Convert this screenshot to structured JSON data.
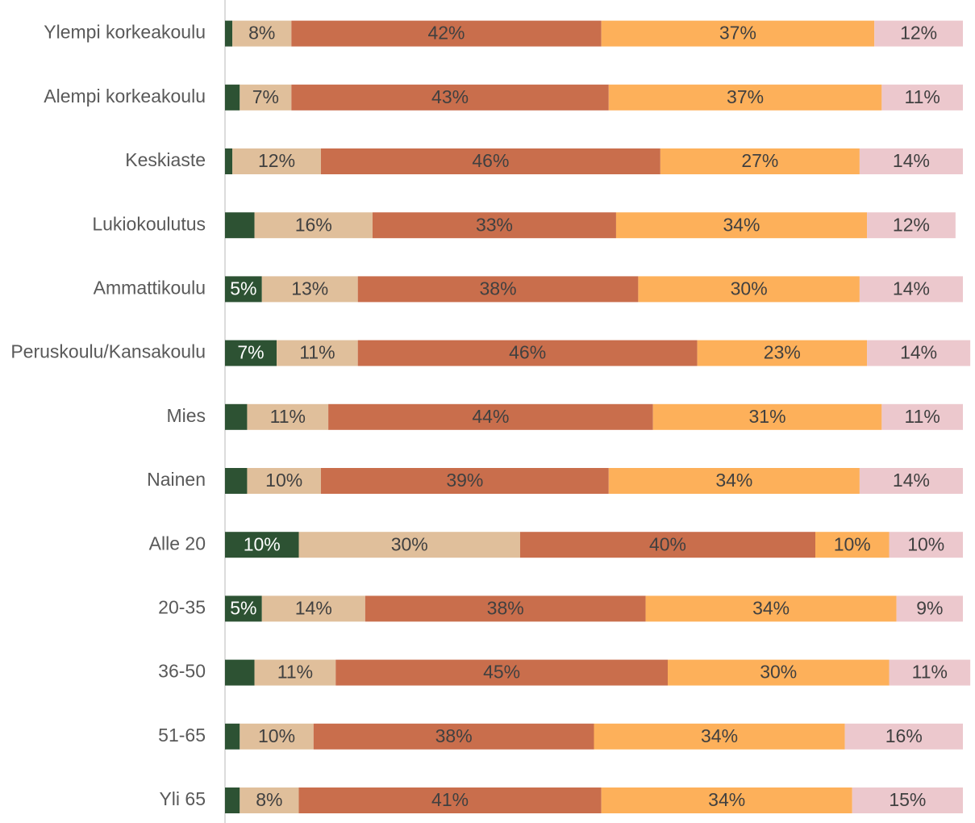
{
  "chart_data": {
    "type": "stacked-bar-horizontal",
    "categories": [
      "Ylempi korkeakoulu",
      "Alempi korkeakoulu",
      "Keskiaste",
      "Lukiokoulutus",
      "Ammattikoulu",
      "Peruskoulu/Kansakoulu",
      "Mies",
      "Nainen",
      "Alle 20",
      "20-35",
      "36-50",
      "51-65",
      "Yli 65"
    ],
    "xlim": [
      0,
      100
    ],
    "series": [
      {
        "color": "#2d5233",
        "values": [
          1,
          2,
          1,
          4,
          5,
          7,
          3,
          3,
          10,
          5,
          4,
          2,
          2
        ],
        "value_labels": [
          null,
          null,
          null,
          null,
          "5%",
          "7%",
          null,
          null,
          "10%",
          "5%",
          null,
          null,
          null
        ]
      },
      {
        "color": "#e0bf9b",
        "values": [
          8,
          7,
          12,
          16,
          13,
          11,
          11,
          10,
          30,
          14,
          11,
          10,
          8
        ],
        "value_labels": [
          "8%",
          "7%",
          "12%",
          "16%",
          "13%",
          "11%",
          "11%",
          "10%",
          "30%",
          "14%",
          "11%",
          "10%",
          "8%"
        ]
      },
      {
        "color": "#c96e4c",
        "values": [
          42,
          43,
          46,
          33,
          38,
          46,
          44,
          39,
          40,
          38,
          45,
          38,
          41
        ],
        "value_labels": [
          "42%",
          "43%",
          "46%",
          "33%",
          "38%",
          "46%",
          "44%",
          "39%",
          "40%",
          "38%",
          "45%",
          "38%",
          "41%"
        ]
      },
      {
        "color": "#fdb05a",
        "values": [
          37,
          37,
          27,
          34,
          30,
          23,
          31,
          34,
          10,
          34,
          30,
          34,
          34
        ],
        "value_labels": [
          "37%",
          "37%",
          "27%",
          "34%",
          "30%",
          "23%",
          "31%",
          "34%",
          "10%",
          "34%",
          "30%",
          "34%",
          "34%"
        ]
      },
      {
        "color": "#ecc8cd",
        "values": [
          12,
          11,
          14,
          12,
          14,
          14,
          11,
          14,
          10,
          9,
          11,
          16,
          15
        ],
        "value_labels": [
          "12%",
          "11%",
          "14%",
          "12%",
          "14%",
          "14%",
          "11%",
          "14%",
          "10%",
          "9%",
          "11%",
          "16%",
          "15%"
        ]
      }
    ]
  }
}
